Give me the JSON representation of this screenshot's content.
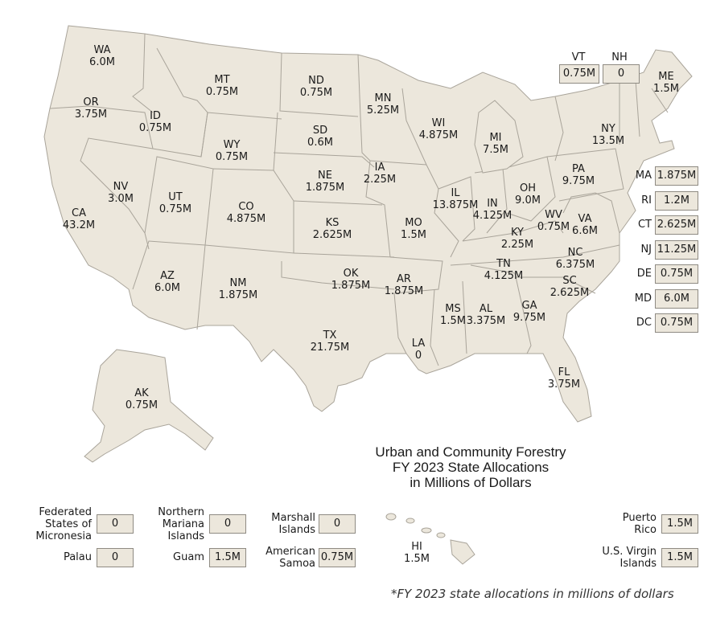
{
  "title_lines": [
    "Urban and Community Forestry",
    "FY 2023 State Allocations",
    "in Millions of Dollars"
  ],
  "footnote": "*FY 2023 state allocations in millions of dollars",
  "states": [
    {
      "code": "WA",
      "value": "6.0M"
    },
    {
      "code": "OR",
      "value": "3.75M"
    },
    {
      "code": "CA",
      "value": "43.2M"
    },
    {
      "code": "ID",
      "value": "0.75M"
    },
    {
      "code": "NV",
      "value": "3.0M"
    },
    {
      "code": "MT",
      "value": "0.75M"
    },
    {
      "code": "WY",
      "value": "0.75M"
    },
    {
      "code": "UT",
      "value": "0.75M"
    },
    {
      "code": "AZ",
      "value": "6.0M"
    },
    {
      "code": "CO",
      "value": "4.875M"
    },
    {
      "code": "NM",
      "value": "1.875M"
    },
    {
      "code": "ND",
      "value": "0.75M"
    },
    {
      "code": "SD",
      "value": "0.6M"
    },
    {
      "code": "NE",
      "value": "1.875M"
    },
    {
      "code": "KS",
      "value": "2.625M"
    },
    {
      "code": "OK",
      "value": "1.875M"
    },
    {
      "code": "TX",
      "value": "21.75M"
    },
    {
      "code": "MN",
      "value": "5.25M"
    },
    {
      "code": "IA",
      "value": "2.25M"
    },
    {
      "code": "MO",
      "value": "1.5M"
    },
    {
      "code": "AR",
      "value": "1.875M"
    },
    {
      "code": "LA",
      "value": "0"
    },
    {
      "code": "WI",
      "value": "4.875M"
    },
    {
      "code": "IL",
      "value": "13.875M"
    },
    {
      "code": "MI",
      "value": "7.5M"
    },
    {
      "code": "IN",
      "value": "4.125M"
    },
    {
      "code": "OH",
      "value": "9.0M"
    },
    {
      "code": "KY",
      "value": "2.25M"
    },
    {
      "code": "TN",
      "value": "4.125M"
    },
    {
      "code": "MS",
      "value": "1.5M"
    },
    {
      "code": "AL",
      "value": "3.375M"
    },
    {
      "code": "GA",
      "value": "9.75M"
    },
    {
      "code": "FL",
      "value": "3.75M"
    },
    {
      "code": "SC",
      "value": "2.625M"
    },
    {
      "code": "NC",
      "value": "6.375M"
    },
    {
      "code": "VA",
      "value": "6.6M"
    },
    {
      "code": "WV",
      "value": "0.75M"
    },
    {
      "code": "PA",
      "value": "9.75M"
    },
    {
      "code": "NY",
      "value": "13.5M"
    },
    {
      "code": "ME",
      "value": "1.5M"
    },
    {
      "code": "AK",
      "value": "0.75M"
    },
    {
      "code": "HI",
      "value": "1.5M"
    }
  ],
  "top_boxes": [
    {
      "code": "VT",
      "value": "0.75M"
    },
    {
      "code": "NH",
      "value": "0"
    }
  ],
  "east_boxes": [
    {
      "code": "MA",
      "value": "1.875M"
    },
    {
      "code": "RI",
      "value": "1.2M"
    },
    {
      "code": "CT",
      "value": "2.625M"
    },
    {
      "code": "NJ",
      "value": "11.25M"
    },
    {
      "code": "DE",
      "value": "0.75M"
    },
    {
      "code": "MD",
      "value": "6.0M"
    },
    {
      "code": "DC",
      "value": "0.75M"
    }
  ],
  "territories": [
    {
      "name": "Federated States of Micronesia",
      "lines": [
        "Federated",
        "States of",
        "Micronesia"
      ],
      "value": "0"
    },
    {
      "name": "Palau",
      "lines": [
        "Palau"
      ],
      "value": "0"
    },
    {
      "name": "Northern Mariana Islands",
      "lines": [
        "Northern",
        "Mariana",
        "Islands"
      ],
      "value": "0"
    },
    {
      "name": "Guam",
      "lines": [
        "Guam"
      ],
      "value": "1.5M"
    },
    {
      "name": "Marshall Islands",
      "lines": [
        "Marshall",
        "Islands"
      ],
      "value": "0"
    },
    {
      "name": "American Samoa",
      "lines": [
        "American",
        "Samoa"
      ],
      "value": "0.75M"
    },
    {
      "name": "Puerto Rico",
      "lines": [
        "Puerto",
        "Rico"
      ],
      "value": "1.5M"
    },
    {
      "name": "U.S. Virgin Islands",
      "lines": [
        "U.S. Virgin",
        "Islands"
      ],
      "value": "1.5M"
    }
  ],
  "colors": {
    "land": "#ece7dc",
    "border": "#a9a49a",
    "box_border": "#8f8b83"
  }
}
